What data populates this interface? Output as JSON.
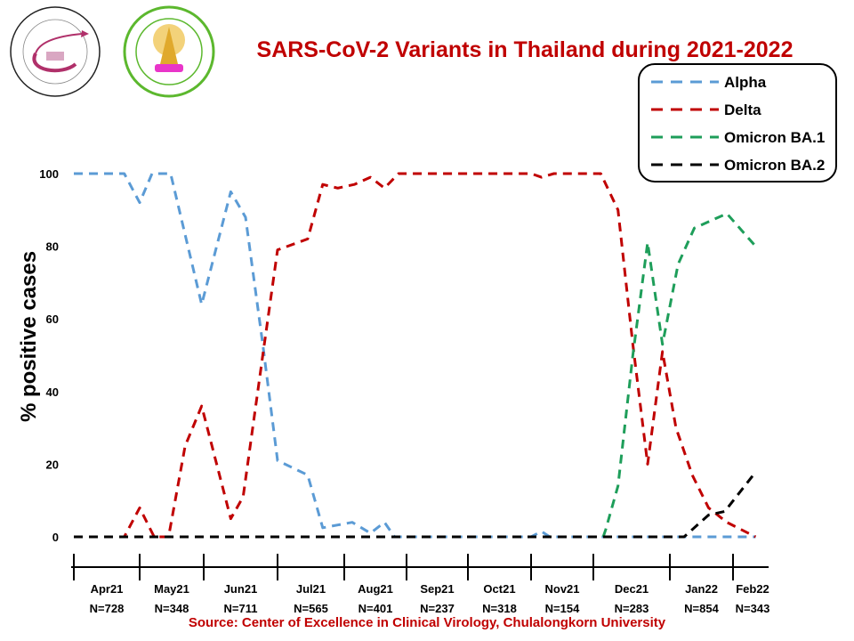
{
  "chart_data": {
    "type": "line",
    "title": "SARS-CoV-2 Variants in Thailand during 2021-2022",
    "ylabel": "% positive cases",
    "xlabel": "",
    "ylim": [
      0,
      100
    ],
    "yticks": [
      "0",
      "20",
      "40",
      "60",
      "80",
      "100"
    ],
    "grid": false,
    "legend_position": "top-right",
    "categories": [
      {
        "month": "Apr21",
        "n": "N=728"
      },
      {
        "month": "May21",
        "n": "N=348"
      },
      {
        "month": "Jun21",
        "n": "N=711"
      },
      {
        "month": "Jul21",
        "n": "N=565"
      },
      {
        "month": "Aug21",
        "n": "N=401"
      },
      {
        "month": "Sep21",
        "n": "N=237"
      },
      {
        "month": "Oct21",
        "n": "N=318"
      },
      {
        "month": "Nov21",
        "n": "N=154"
      },
      {
        "month": "Dec21",
        "n": "N=283"
      },
      {
        "month": "Jan22",
        "n": "N=854"
      },
      {
        "month": "Feb22",
        "n": "N=343"
      }
    ],
    "series": [
      {
        "name": "Alpha",
        "color": "#5b9bd5",
        "line_style": "dashed",
        "points": [
          [
            "2021-04-01",
            100
          ],
          [
            "2021-04-24",
            100
          ],
          [
            "2021-05-01",
            92
          ],
          [
            "2021-05-07",
            100
          ],
          [
            "2021-05-16",
            100
          ],
          [
            "2021-05-31",
            64
          ],
          [
            "2021-06-12",
            95
          ],
          [
            "2021-06-18",
            88
          ],
          [
            "2021-06-25",
            53
          ],
          [
            "2021-07-01",
            21
          ],
          [
            "2021-07-15",
            17
          ],
          [
            "2021-07-22",
            2.5
          ],
          [
            "2021-08-05",
            4
          ],
          [
            "2021-08-14",
            1
          ],
          [
            "2021-08-21",
            4
          ],
          [
            "2021-08-26",
            0
          ],
          [
            "2021-11-01",
            0
          ],
          [
            "2021-11-06",
            1.5
          ],
          [
            "2021-11-10",
            0
          ],
          [
            "2022-02-11",
            0
          ]
        ]
      },
      {
        "name": "Delta",
        "color": "#c00000",
        "line_style": "dashed",
        "points": [
          [
            "2021-04-01",
            0
          ],
          [
            "2021-04-24",
            0
          ],
          [
            "2021-05-01",
            8
          ],
          [
            "2021-05-08",
            0
          ],
          [
            "2021-05-15",
            0
          ],
          [
            "2021-05-23",
            25
          ],
          [
            "2021-05-31",
            36
          ],
          [
            "2021-06-12",
            5
          ],
          [
            "2021-06-17",
            11
          ],
          [
            "2021-06-25",
            50
          ],
          [
            "2021-07-01",
            79
          ],
          [
            "2021-07-15",
            82
          ],
          [
            "2021-07-22",
            97
          ],
          [
            "2021-07-29",
            96
          ],
          [
            "2021-08-06",
            97
          ],
          [
            "2021-08-14",
            99
          ],
          [
            "2021-08-21",
            96
          ],
          [
            "2021-08-28",
            100
          ],
          [
            "2021-11-01",
            100
          ],
          [
            "2021-11-06",
            99
          ],
          [
            "2021-11-12",
            100
          ],
          [
            "2021-12-04",
            100
          ],
          [
            "2021-12-11",
            90
          ],
          [
            "2021-12-17",
            53
          ],
          [
            "2021-12-23",
            20
          ],
          [
            "2021-12-29",
            51
          ],
          [
            "2022-01-04",
            30
          ],
          [
            "2022-01-12",
            17
          ],
          [
            "2022-01-20",
            8
          ],
          [
            "2022-01-29",
            4
          ],
          [
            "2022-02-11",
            0
          ]
        ]
      },
      {
        "name": "Omicron BA.1",
        "color": "#1e9e5a",
        "line_style": "dashed",
        "points": [
          [
            "2021-04-01",
            0
          ],
          [
            "2021-12-05",
            0
          ],
          [
            "2021-12-06",
            2
          ],
          [
            "2021-12-11",
            14
          ],
          [
            "2021-12-17",
            50
          ],
          [
            "2021-12-23",
            81
          ],
          [
            "2021-12-29",
            53
          ],
          [
            "2022-01-05",
            75
          ],
          [
            "2022-01-13",
            85
          ],
          [
            "2022-01-29",
            89
          ],
          [
            "2022-02-11",
            80
          ]
        ]
      },
      {
        "name": "Omicron BA.2",
        "color": "#000000",
        "line_style": "dashed",
        "points": [
          [
            "2021-04-01",
            0
          ],
          [
            "2022-01-08",
            0
          ],
          [
            "2022-01-20",
            6
          ],
          [
            "2022-01-28",
            7
          ],
          [
            "2022-02-10",
            17
          ]
        ]
      }
    ]
  },
  "source": "Source: Center of Excellence in Clinical Virology, Chulalongkorn University",
  "logos": [
    {
      "name": "Center of Excellence in Clinical Virology"
    },
    {
      "name": "Faculty of Medicine Chulalongkorn University"
    }
  ]
}
